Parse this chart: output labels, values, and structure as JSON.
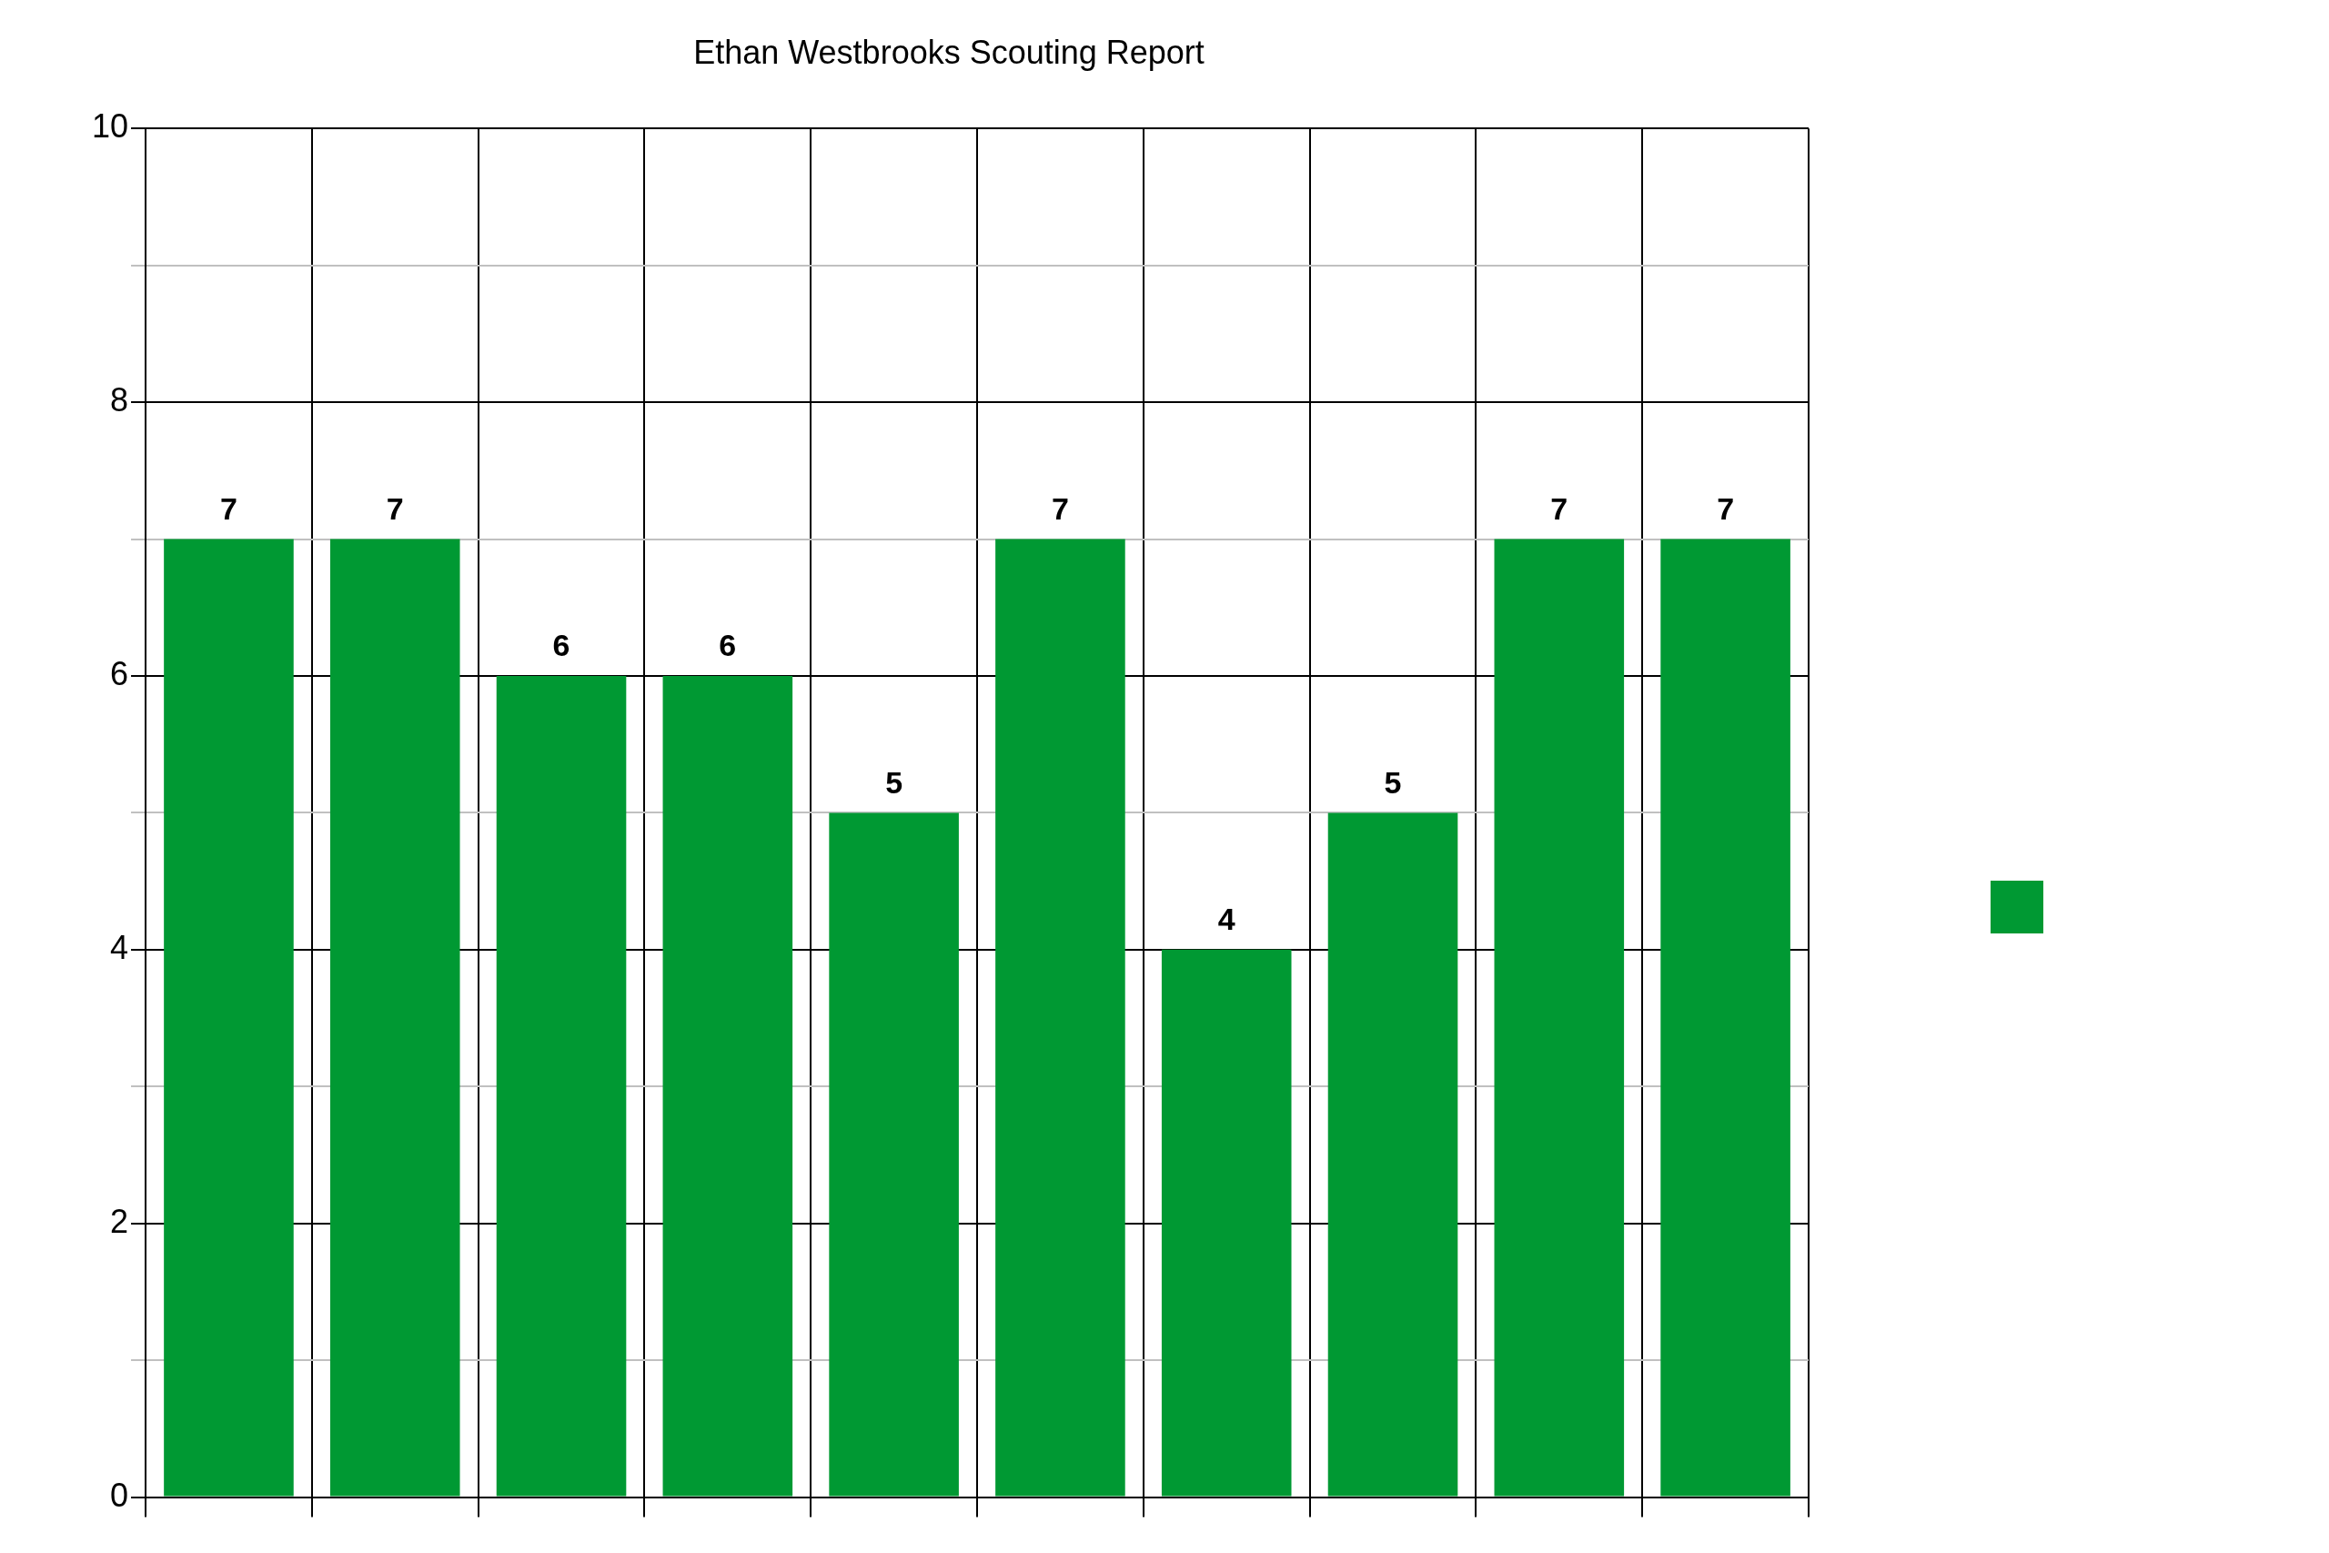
{
  "chart_data": {
    "type": "bar",
    "title": "Ethan Westbrooks Scouting Report",
    "categories": [
      null,
      null,
      null,
      null,
      null,
      null,
      null,
      null,
      null,
      null
    ],
    "series": [
      {
        "color": "#009933",
        "values": [
          7,
          7,
          6,
          6,
          5,
          7,
          4,
          5,
          7,
          7
        ]
      }
    ],
    "ylim": [
      0,
      10
    ],
    "yticks": [
      0,
      {
        "value": 1,
        "label": null
      },
      2,
      {
        "value": 3,
        "label": null
      },
      4,
      {
        "value": 5,
        "label": null
      },
      6,
      {
        "value": 7,
        "label": null
      },
      8,
      {
        "value": 9,
        "label": null
      },
      10
    ],
    "grid": true,
    "data_labels": true
  }
}
